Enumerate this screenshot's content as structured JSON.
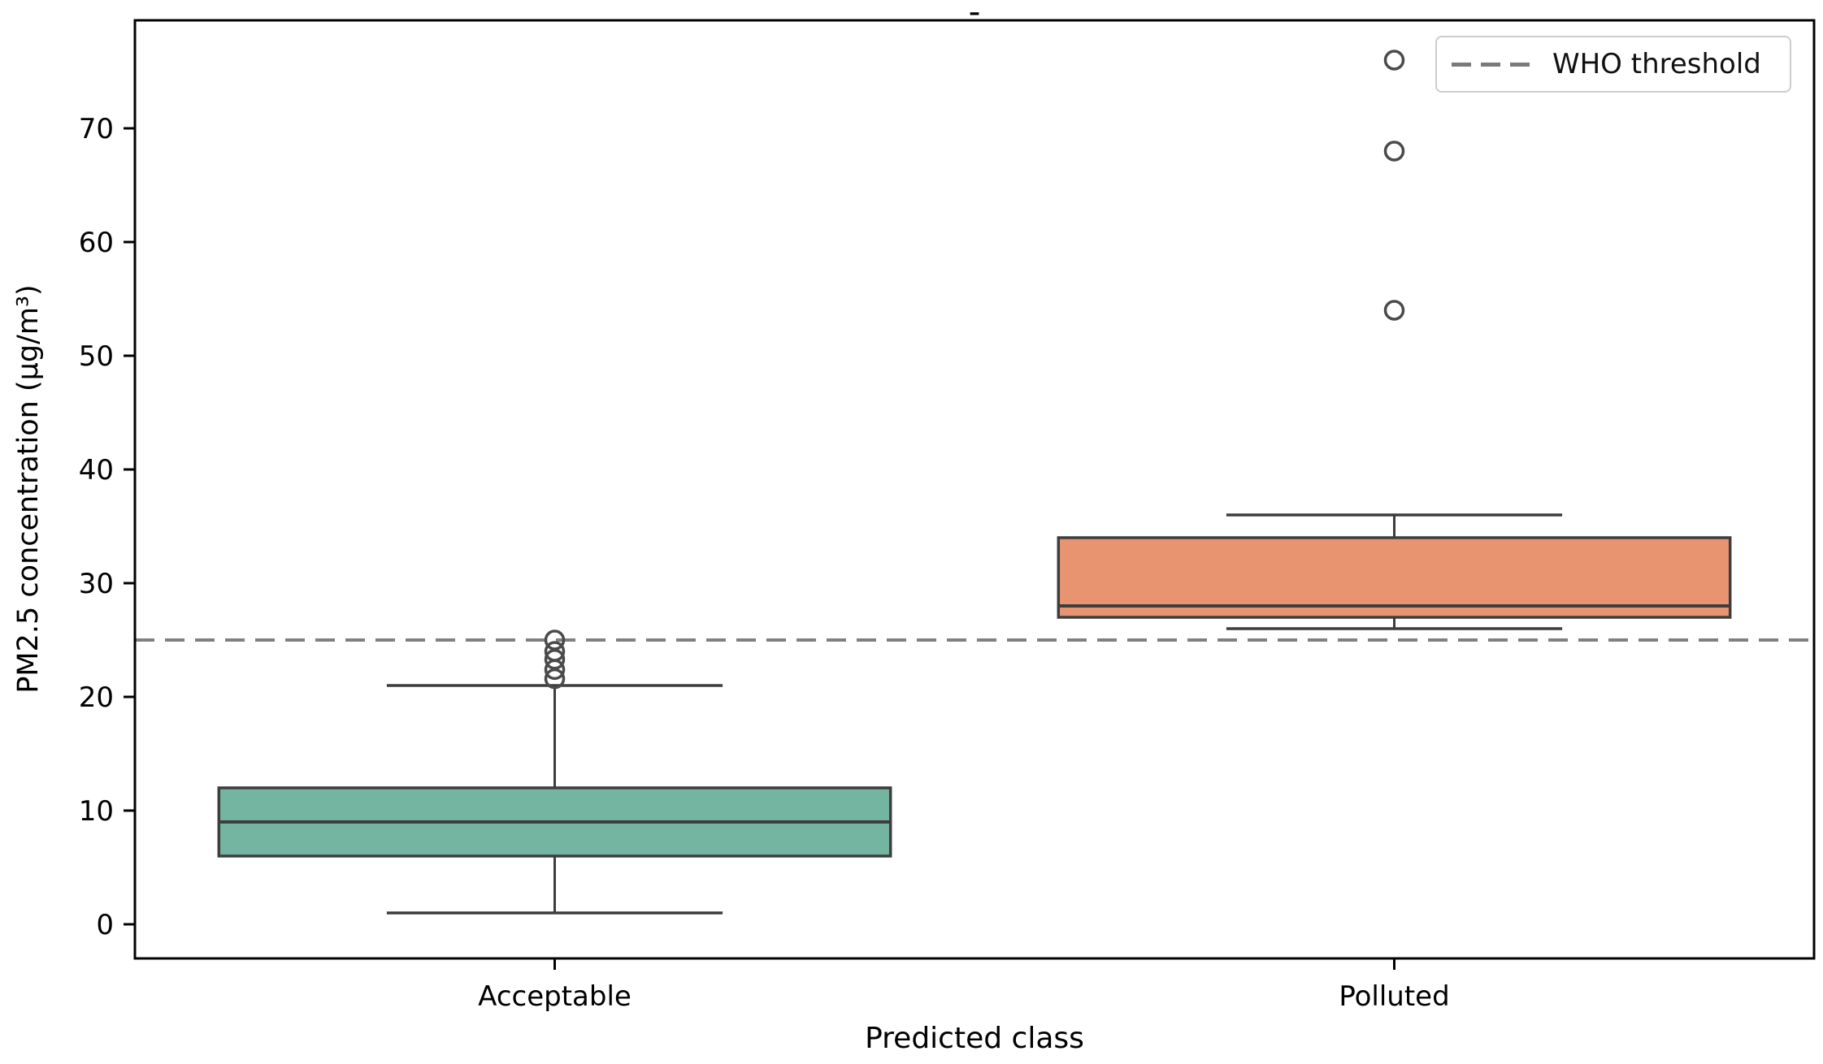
{
  "chart_data": {
    "type": "box",
    "title": "-",
    "xlabel": "Predicted class",
    "ylabel": "PM2.5 concentration (μg/m³)",
    "categories": [
      "Acceptable",
      "Polluted"
    ],
    "yticks": [
      0,
      10,
      20,
      30,
      40,
      50,
      60,
      70
    ],
    "ylim": [
      -3,
      79.5
    ],
    "grid": false,
    "box_width_fraction": 0.8,
    "cap_width_fraction": 0.4,
    "edge_color": "#3d3d3d",
    "outlier_color": "#4a4a4a",
    "series": [
      {
        "name": "Acceptable",
        "fill_color": "#73b5a0",
        "whisker_low": 1,
        "q1": 6,
        "median": 9,
        "q3": 12,
        "whisker_high": 21,
        "outliers": [
          21.6,
          22.4,
          23.3,
          24,
          25
        ]
      },
      {
        "name": "Polluted",
        "fill_color": "#e89470",
        "whisker_low": 26,
        "q1": 27,
        "median": 28,
        "q3": 34,
        "whisker_high": 36,
        "outliers": [
          54,
          68,
          76
        ]
      }
    ],
    "threshold_line": {
      "value": 25,
      "color": "#808080",
      "style": "dashed",
      "label": "WHO threshold"
    },
    "legend": {
      "position": "upper right",
      "entries": [
        {
          "label": "WHO threshold",
          "line_style": "dashed",
          "color": "#7a7a7a"
        }
      ]
    }
  }
}
